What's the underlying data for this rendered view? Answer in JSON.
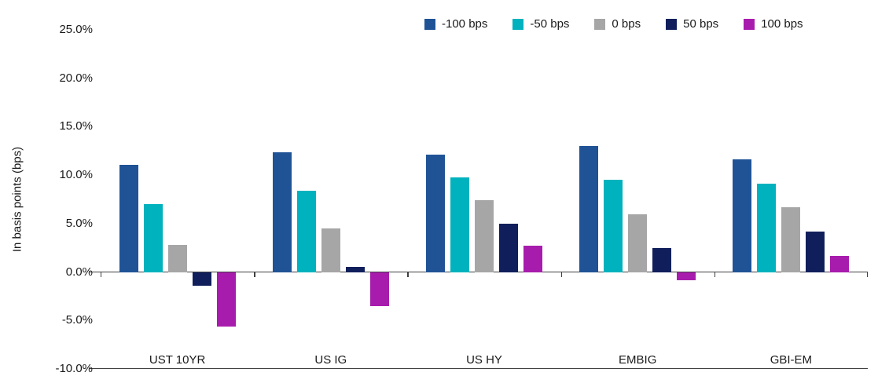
{
  "chart_data": {
    "type": "bar",
    "title": "",
    "xlabel": "",
    "ylabel": "In basis points (bps)",
    "categories": [
      "UST 10YR",
      "US IG",
      "US HY",
      "EMBIG",
      "GBI-EM"
    ],
    "series": [
      {
        "name": "-100 bps",
        "color": "#1F5396",
        "values": [
          11.1,
          12.4,
          12.1,
          13.0,
          11.6
        ]
      },
      {
        "name": "-50 bps",
        "color": "#00B2BD",
        "values": [
          7.0,
          8.4,
          9.8,
          9.5,
          9.1
        ]
      },
      {
        "name": "0 bps",
        "color": "#A6A6A6",
        "values": [
          2.8,
          4.5,
          7.4,
          6.0,
          6.7
        ]
      },
      {
        "name": "50 bps",
        "color": "#101F5C",
        "values": [
          -1.4,
          0.5,
          5.0,
          2.5,
          4.2
        ]
      },
      {
        "name": "100 bps",
        "color": "#A81CAD",
        "values": [
          -5.6,
          -3.5,
          2.7,
          -0.8,
          1.7
        ]
      }
    ],
    "ylim": [
      -10,
      25
    ],
    "yticks": [
      {
        "value": 25,
        "label": "25.0%"
      },
      {
        "value": 20,
        "label": "20.0%"
      },
      {
        "value": 15,
        "label": "15.0%"
      },
      {
        "value": 10,
        "label": "10.0%"
      },
      {
        "value": 5,
        "label": "5.0%"
      },
      {
        "value": 0,
        "label": "0.0%"
      },
      {
        "value": -5,
        "label": "-5.0%"
      },
      {
        "value": -10,
        "label": "-10.0%"
      }
    ],
    "grid": false,
    "legend_position": "top-right"
  }
}
